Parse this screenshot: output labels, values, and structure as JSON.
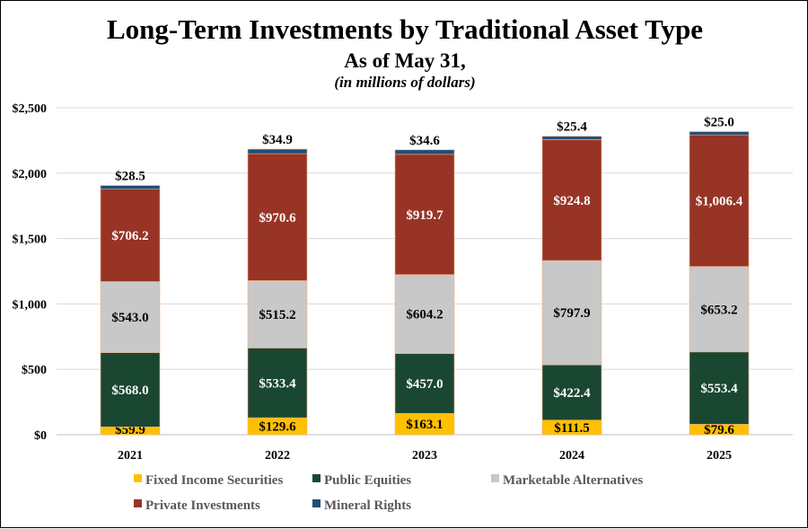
{
  "chart_data": {
    "type": "bar",
    "stacked": true,
    "title": "Long-Term Investments by Traditional Asset Type",
    "subtitle": "As of May 31,",
    "subtitle2": "(in millions of dollars)",
    "categories": [
      "2021",
      "2022",
      "2023",
      "2024",
      "2025"
    ],
    "ylim": [
      0,
      2500
    ],
    "yticks": [
      0,
      500,
      1000,
      1500,
      2000,
      2500
    ],
    "ytick_labels": [
      "$0",
      "$500",
      "$1,000",
      "$1,500",
      "$2,000",
      "$2,500"
    ],
    "grid": true,
    "legend_position": "bottom",
    "series": [
      {
        "name": "Fixed Income Securities",
        "color": "#FFC000",
        "label_color": "#000000",
        "values": [
          59.9,
          129.6,
          163.1,
          111.5,
          79.6
        ],
        "labels": [
          "$59.9",
          "$129.6",
          "$163.1",
          "$111.5",
          "$79.6"
        ]
      },
      {
        "name": "Public Equities",
        "color": "#1A4731",
        "label_color": "#FFFFFF",
        "values": [
          568.0,
          533.4,
          457.0,
          422.4,
          553.4
        ],
        "labels": [
          "$568.0",
          "$533.4",
          "$457.0",
          "$422.4",
          "$553.4"
        ]
      },
      {
        "name": "Marketable Alternatives",
        "color": "#C8C8C8",
        "label_color": "#000000",
        "values": [
          543.0,
          515.2,
          604.2,
          797.9,
          653.2
        ],
        "labels": [
          "$543.0",
          "$515.2",
          "$604.2",
          "$797.9",
          "$653.2"
        ]
      },
      {
        "name": "Private Investments",
        "color": "#973425",
        "label_color": "#FFFFFF",
        "values": [
          706.2,
          970.6,
          919.7,
          924.8,
          1006.4
        ],
        "labels": [
          "$706.2",
          "$970.6",
          "$919.7",
          "$924.8",
          "$1,006.4"
        ]
      },
      {
        "name": "Mineral Rights",
        "color": "#1F4E79",
        "label_color": "#000000",
        "values": [
          28.5,
          34.9,
          34.6,
          25.4,
          25.0
        ],
        "labels": [
          "$28.5",
          "$34.9",
          "$34.6",
          "$25.4",
          "$25.0"
        ]
      }
    ]
  }
}
